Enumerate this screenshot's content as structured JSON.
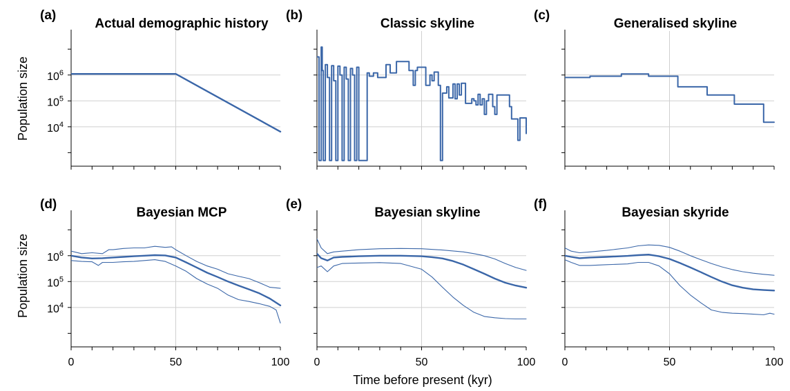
{
  "figure": {
    "xlabel": "Time before present (kyr)",
    "ylabel": "Population size",
    "line_color": "#3a66a8"
  },
  "chart_data": [
    {
      "id": "a",
      "letter": "(a)",
      "title": "Actual demographic history",
      "type": "line",
      "ylog": true,
      "xlim": [
        0,
        100
      ],
      "ylim": [
        300,
        50000000
      ],
      "x_ticks": [
        "0",
        "50",
        "100"
      ],
      "y_ticks": [
        "10^4",
        "10^5",
        "10^6"
      ],
      "grid": true,
      "series": [
        {
          "role": "main",
          "x": [
            0,
            50,
            100
          ],
          "y": [
            1100000,
            1100000,
            6500
          ]
        }
      ]
    },
    {
      "id": "b",
      "letter": "(b)",
      "title": "Classic skyline",
      "type": "line",
      "step": true,
      "ylog": true,
      "xlim": [
        0,
        100
      ],
      "ylim": [
        300,
        50000000
      ],
      "x_ticks": [
        "0",
        "50",
        "100"
      ],
      "y_ticks": [
        "10^4",
        "10^5",
        "10^6"
      ],
      "grid": true,
      "series": [
        {
          "role": "main",
          "x": [
            0,
            1,
            1,
            2,
            2,
            2.5,
            2.5,
            3,
            3,
            4,
            4,
            5,
            5,
            6,
            6,
            7,
            7,
            8,
            8,
            9,
            9,
            10,
            10,
            11,
            11,
            12,
            12,
            13,
            13,
            14,
            14,
            15,
            15,
            16,
            16,
            17,
            17,
            18,
            18,
            19,
            19,
            20,
            20,
            24,
            24,
            25,
            25,
            27,
            27,
            29,
            29,
            33,
            33,
            35,
            35,
            38,
            38,
            44,
            44,
            46,
            46,
            47,
            47,
            48,
            48,
            52,
            52,
            54,
            54,
            55,
            55,
            56,
            56,
            58,
            58,
            59,
            59,
            60,
            60,
            62,
            62,
            63,
            63,
            65,
            65,
            66,
            66,
            67,
            67,
            68,
            68,
            69,
            69,
            71,
            71,
            74,
            74,
            75,
            75,
            76,
            76,
            77,
            77,
            78,
            78,
            79,
            79,
            80,
            80,
            81,
            81,
            82,
            82,
            84,
            84,
            85,
            85,
            86,
            86,
            92,
            92,
            93,
            93,
            96,
            96,
            97,
            97,
            100,
            100
          ],
          "y": [
            5000000,
            5000000,
            500,
            500,
            12000000,
            12000000,
            1500000,
            1500000,
            500,
            500,
            2500000,
            2500000,
            800000,
            800000,
            500,
            500,
            2300000,
            2300000,
            600000,
            600000,
            500,
            500,
            2200000,
            2200000,
            1000000,
            1000000,
            500,
            500,
            2000000,
            2000000,
            700000,
            700000,
            500,
            500,
            1800000,
            1800000,
            1000000,
            1000000,
            500,
            500,
            2000000,
            2000000,
            500,
            500,
            1200000,
            1200000,
            900000,
            900000,
            1200000,
            1200000,
            800000,
            800000,
            2500000,
            2500000,
            1200000,
            1200000,
            3300000,
            3300000,
            1500000,
            1500000,
            400000,
            400000,
            1500000,
            1500000,
            2000000,
            2000000,
            400000,
            400000,
            1000000,
            1000000,
            600000,
            600000,
            1300000,
            1300000,
            400000,
            400000,
            500,
            500,
            200000,
            200000,
            350000,
            350000,
            130000,
            130000,
            450000,
            450000,
            120000,
            120000,
            450000,
            450000,
            170000,
            170000,
            480000,
            480000,
            80000,
            80000,
            120000,
            120000,
            100000,
            100000,
            70000,
            70000,
            180000,
            180000,
            70000,
            70000,
            120000,
            120000,
            30000,
            30000,
            100000,
            100000,
            180000,
            180000,
            60000,
            60000,
            30000,
            30000,
            170000,
            170000,
            60000,
            60000,
            20000,
            20000,
            3000,
            3000,
            22000,
            22000,
            5500
          ]
        }
      ]
    },
    {
      "id": "c",
      "letter": "(c)",
      "title": "Generalised skyline",
      "type": "line",
      "step": true,
      "ylog": true,
      "xlim": [
        0,
        100
      ],
      "ylim": [
        300,
        50000000
      ],
      "x_ticks": [
        "0",
        "50",
        "100"
      ],
      "y_ticks": [
        "10^4",
        "10^5",
        "10^6"
      ],
      "grid": true,
      "series": [
        {
          "role": "main",
          "x": [
            0,
            12,
            12,
            27,
            27,
            40,
            40,
            54,
            54,
            68,
            68,
            81,
            81,
            95,
            95,
            100
          ],
          "y": [
            800000,
            800000,
            900000,
            900000,
            1100000,
            1100000,
            900000,
            900000,
            350000,
            350000,
            170000,
            170000,
            75000,
            75000,
            15000,
            15000
          ]
        }
      ]
    },
    {
      "id": "d",
      "letter": "(d)",
      "title": "Bayesian MCP",
      "type": "line",
      "ylog": true,
      "xlim": [
        0,
        100
      ],
      "ylim": [
        300,
        50000000
      ],
      "x_ticks": [
        "0",
        "50",
        "100"
      ],
      "y_ticks": [
        "10^4",
        "10^5",
        "10^6"
      ],
      "grid": true,
      "series": [
        {
          "role": "upper",
          "x": [
            0,
            5,
            10,
            15,
            18,
            20,
            25,
            30,
            35,
            40,
            45,
            48,
            50,
            55,
            60,
            65,
            70,
            75,
            80,
            85,
            90,
            95,
            100
          ],
          "y": [
            1500000,
            1200000,
            1300000,
            1200000,
            1700000,
            1700000,
            1900000,
            2000000,
            2000000,
            2300000,
            2100000,
            2200000,
            1700000,
            1000000,
            600000,
            400000,
            300000,
            200000,
            160000,
            130000,
            90000,
            60000,
            55000
          ]
        },
        {
          "role": "main",
          "x": [
            0,
            5,
            10,
            15,
            20,
            25,
            30,
            35,
            40,
            45,
            50,
            55,
            60,
            65,
            70,
            75,
            80,
            85,
            90,
            95,
            100
          ],
          "y": [
            1000000,
            850000,
            780000,
            800000,
            850000,
            900000,
            950000,
            1000000,
            1050000,
            1020000,
            850000,
            550000,
            350000,
            220000,
            150000,
            100000,
            70000,
            50000,
            35000,
            22000,
            12000
          ]
        },
        {
          "role": "lower",
          "x": [
            0,
            5,
            10,
            13,
            15,
            20,
            25,
            30,
            35,
            40,
            45,
            50,
            55,
            60,
            65,
            70,
            75,
            80,
            85,
            90,
            95,
            98,
            100
          ],
          "y": [
            650000,
            600000,
            580000,
            420000,
            550000,
            550000,
            580000,
            600000,
            650000,
            700000,
            600000,
            400000,
            250000,
            130000,
            80000,
            55000,
            30000,
            20000,
            17000,
            14000,
            11000,
            8000,
            2500
          ]
        }
      ]
    },
    {
      "id": "e",
      "letter": "(e)",
      "title": "Bayesian skyline",
      "type": "line",
      "ylog": true,
      "xlim": [
        0,
        100
      ],
      "ylim": [
        300,
        50000000
      ],
      "x_ticks": [
        "0",
        "50",
        "100"
      ],
      "y_ticks": [
        "10^4",
        "10^5",
        "10^6"
      ],
      "grid": true,
      "series": [
        {
          "role": "upper",
          "x": [
            0,
            2,
            5,
            8,
            12,
            20,
            30,
            40,
            50,
            60,
            70,
            75,
            80,
            85,
            90,
            95,
            100
          ],
          "y": [
            4500000,
            2000000,
            1200000,
            1400000,
            1500000,
            1700000,
            1850000,
            1900000,
            1850000,
            1650000,
            1400000,
            1200000,
            1000000,
            750000,
            500000,
            350000,
            270000
          ]
        },
        {
          "role": "main",
          "x": [
            0,
            2,
            5,
            8,
            12,
            20,
            30,
            40,
            50,
            55,
            60,
            65,
            70,
            75,
            80,
            85,
            90,
            95,
            100
          ],
          "y": [
            1200000,
            800000,
            650000,
            850000,
            900000,
            950000,
            1000000,
            1000000,
            950000,
            880000,
            780000,
            620000,
            450000,
            300000,
            200000,
            130000,
            90000,
            70000,
            58000
          ]
        },
        {
          "role": "lower",
          "x": [
            0,
            2,
            5,
            8,
            12,
            20,
            30,
            40,
            50,
            55,
            60,
            65,
            70,
            75,
            80,
            85,
            90,
            95,
            100
          ],
          "y": [
            350000,
            400000,
            240000,
            400000,
            500000,
            520000,
            540000,
            500000,
            300000,
            150000,
            60000,
            25000,
            12000,
            6500,
            4500,
            4000,
            3700,
            3600,
            3600
          ]
        }
      ]
    },
    {
      "id": "f",
      "letter": "(f)",
      "title": "Bayesian skyride",
      "type": "line",
      "ylog": true,
      "xlim": [
        0,
        100
      ],
      "ylim": [
        300,
        50000000
      ],
      "x_ticks": [
        "0",
        "50",
        "100"
      ],
      "y_ticks": [
        "10^4",
        "10^5",
        "10^6"
      ],
      "grid": true,
      "series": [
        {
          "role": "upper",
          "x": [
            0,
            3,
            7,
            12,
            20,
            30,
            35,
            40,
            45,
            50,
            55,
            60,
            65,
            70,
            75,
            80,
            85,
            90,
            95,
            100
          ],
          "y": [
            2000000,
            1500000,
            1300000,
            1400000,
            1600000,
            2000000,
            2400000,
            2600000,
            2500000,
            2100000,
            1500000,
            1000000,
            700000,
            500000,
            370000,
            290000,
            240000,
            210000,
            190000,
            175000
          ]
        },
        {
          "role": "main",
          "x": [
            0,
            3,
            7,
            12,
            20,
            30,
            35,
            40,
            45,
            50,
            55,
            60,
            65,
            70,
            75,
            80,
            85,
            90,
            95,
            100
          ],
          "y": [
            1000000,
            900000,
            800000,
            850000,
            900000,
            980000,
            1050000,
            1100000,
            950000,
            750000,
            520000,
            350000,
            230000,
            150000,
            100000,
            72000,
            58000,
            50000,
            47000,
            45000
          ]
        },
        {
          "role": "lower",
          "x": [
            0,
            3,
            7,
            12,
            20,
            30,
            35,
            40,
            45,
            50,
            55,
            60,
            65,
            70,
            75,
            80,
            85,
            90,
            95,
            98,
            100
          ],
          "y": [
            700000,
            550000,
            420000,
            420000,
            450000,
            480000,
            550000,
            550000,
            400000,
            200000,
            70000,
            30000,
            15000,
            8000,
            6500,
            6000,
            5800,
            5500,
            5200,
            6000,
            5500
          ]
        }
      ]
    }
  ]
}
